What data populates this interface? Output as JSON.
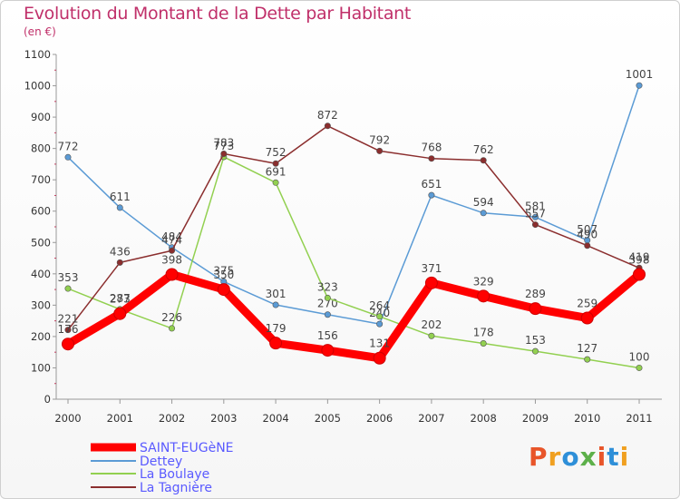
{
  "chart_data": {
    "type": "line",
    "title": "Evolution du Montant de la Dette par Habitant",
    "subtitle": "(en €)",
    "x": [
      "2000",
      "2001",
      "2002",
      "2003",
      "2004",
      "2005",
      "2006",
      "2007",
      "2008",
      "2009",
      "2010",
      "2011"
    ],
    "ylim": [
      0,
      1100
    ],
    "yticks": [
      0,
      100,
      200,
      300,
      400,
      500,
      600,
      700,
      800,
      900,
      1000,
      1100
    ],
    "grid": false,
    "legend_placement": "bottom-left",
    "series": [
      {
        "name": "SAINT-EUGèNE",
        "color": "#ff0000",
        "values": [
          176,
          273,
          398,
          350,
          179,
          156,
          131,
          371,
          329,
          289,
          259,
          398
        ]
      },
      {
        "name": "Dettey",
        "color": "#5b9bd5",
        "values": [
          772,
          611,
          484,
          375,
          301,
          270,
          240,
          651,
          594,
          581,
          507,
          1001
        ]
      },
      {
        "name": "La Boulaye",
        "color": "#92d050",
        "values": [
          353,
          287,
          226,
          773,
          691,
          323,
          264,
          202,
          178,
          153,
          127,
          100
        ]
      },
      {
        "name": "La Tagnière",
        "color": "#8b2e2e",
        "values": [
          221,
          436,
          474,
          783,
          752,
          872,
          792,
          768,
          762,
          557,
          490,
          419
        ]
      }
    ]
  },
  "logo": {
    "text": "Proxiti"
  }
}
